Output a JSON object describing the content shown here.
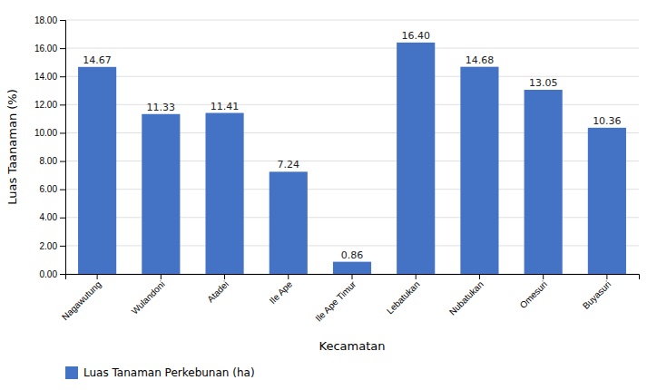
{
  "chart_data": {
    "type": "bar",
    "categories": [
      "Nagawutung",
      "Wulandoni",
      "Atadei",
      "Ile Ape",
      "Ile Ape Timur",
      "Lebatukan",
      "Nubatukan",
      "Omesuri",
      "Buyasuri"
    ],
    "series": [
      {
        "name": "Luas Tanaman Perkebunan (ha)",
        "color": "#4472C4",
        "values": [
          14.67,
          11.33,
          11.41,
          7.24,
          0.86,
          16.4,
          14.68,
          13.05,
          10.36
        ],
        "value_labels": [
          "14.67",
          "11.33",
          "11.41",
          "7.24",
          "0.86",
          "16.40",
          "14.68",
          "13.05",
          "10.36"
        ]
      }
    ],
    "xlabel": "Kecamatan",
    "ylabel": "Luas Taanaman (%)",
    "ylim": [
      0,
      18.0
    ],
    "yticks": [
      {
        "value": 0.0,
        "label": "0.00"
      },
      {
        "value": 2.0,
        "label": "2.00"
      },
      {
        "value": 4.0,
        "label": "4.00"
      },
      {
        "value": 6.0,
        "label": "6.00"
      },
      {
        "value": 8.0,
        "label": "8.00"
      },
      {
        "value": 10.0,
        "label": "10.00"
      },
      {
        "value": 12.0,
        "label": "12.00"
      },
      {
        "value": 14.0,
        "label": "14.00"
      },
      {
        "value": 16.0,
        "label": "16.00"
      },
      {
        "value": 18.0,
        "label": "18.00"
      }
    ],
    "grid": true,
    "data_labels": true,
    "legend": "bottom"
  }
}
